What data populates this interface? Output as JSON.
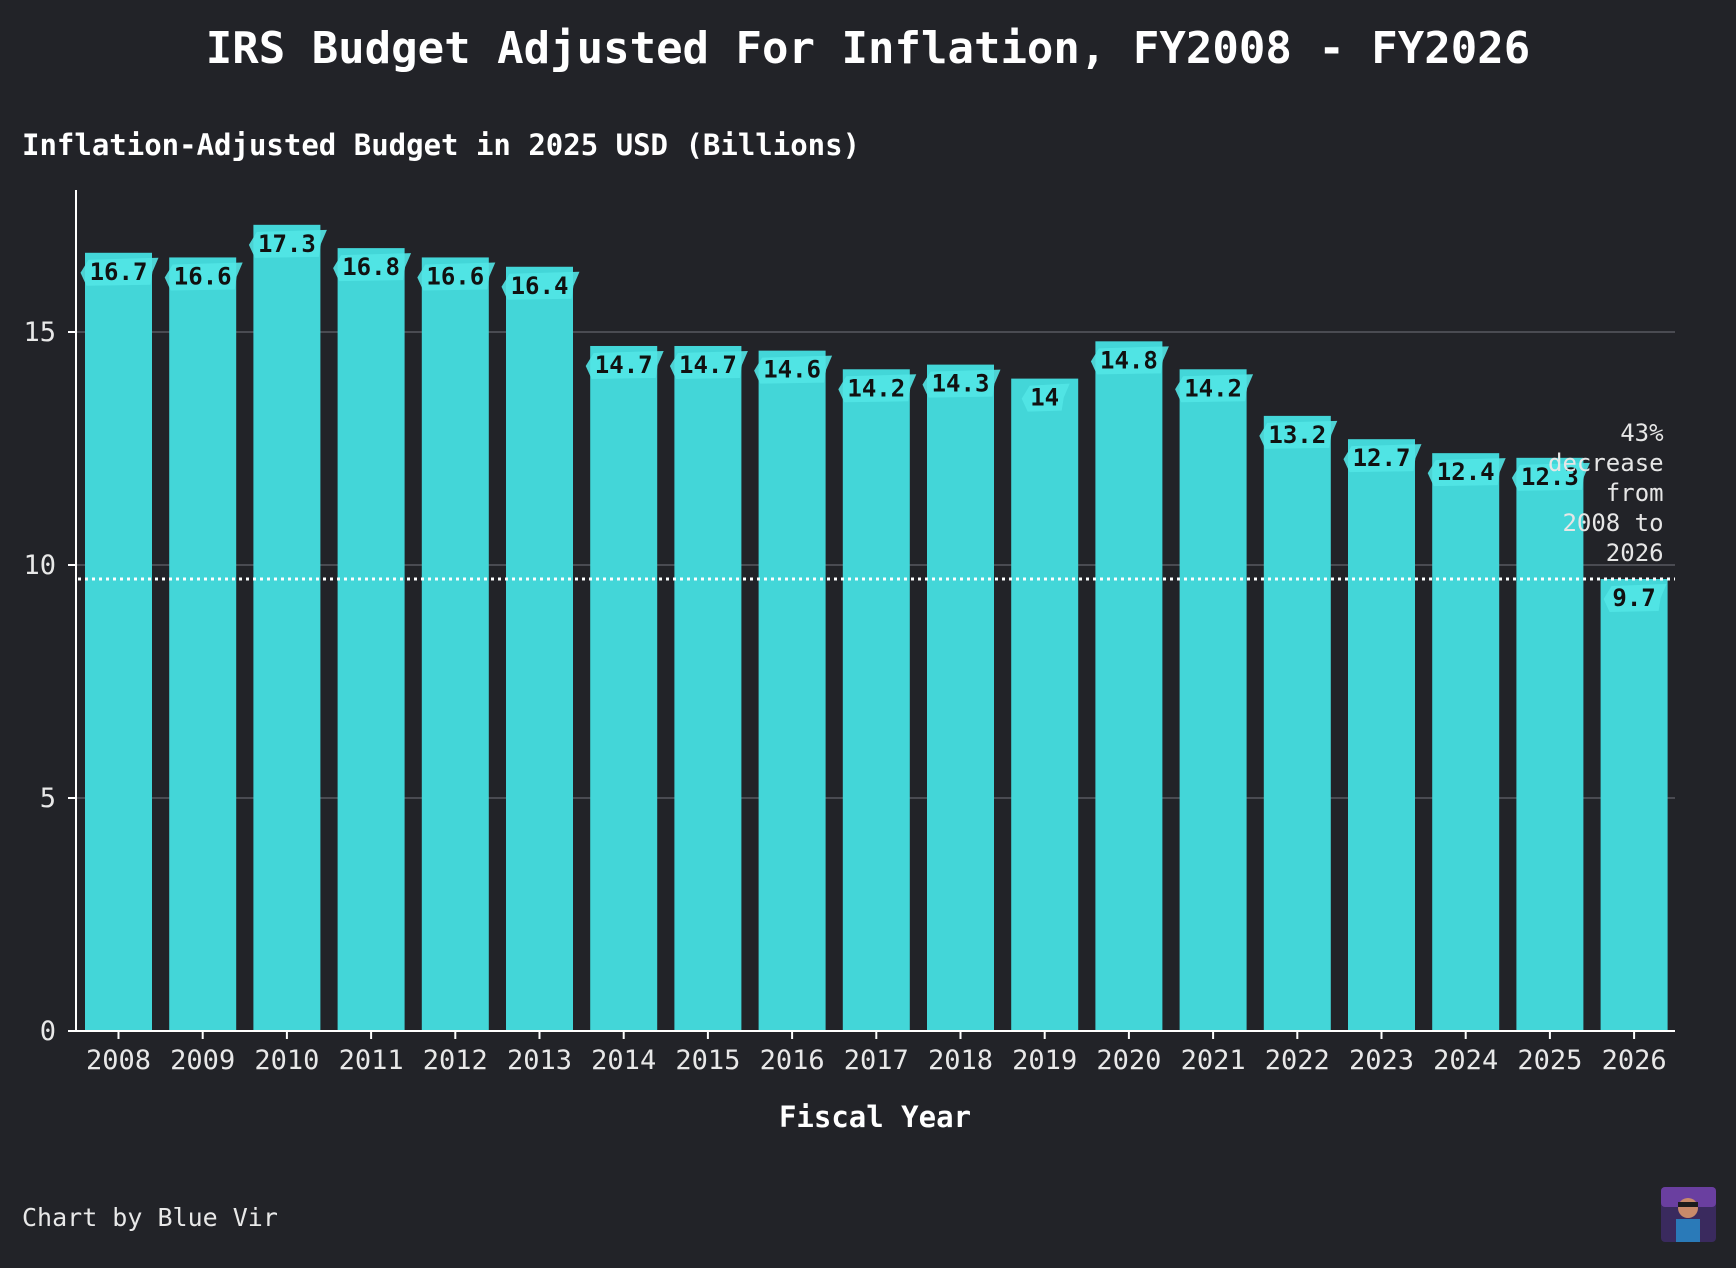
{
  "colors": {
    "background": "#222328",
    "bar": "#43d6d8",
    "label_bg": "#52e5e6",
    "grid": "#4a4b52",
    "axis": "#ffffff",
    "reference_line": "#ffffff"
  },
  "chart_data": {
    "type": "bar",
    "title": "IRS Budget Adjusted For Inflation, FY2008 - FY2026",
    "ylabel": "Inflation-Adjusted Budget in 2025 USD (Billions)",
    "xlabel": "Fiscal Year",
    "categories": [
      "2008",
      "2009",
      "2010",
      "2011",
      "2012",
      "2013",
      "2014",
      "2015",
      "2016",
      "2017",
      "2018",
      "2019",
      "2020",
      "2021",
      "2022",
      "2023",
      "2024",
      "2025",
      "2026"
    ],
    "values": [
      16.7,
      16.6,
      17.3,
      16.8,
      16.6,
      16.4,
      14.7,
      14.7,
      14.6,
      14.2,
      14.3,
      14,
      14.8,
      14.2,
      13.2,
      12.7,
      12.4,
      12.3,
      9.7
    ],
    "data_labels": [
      "16.7",
      "16.6",
      "17.3",
      "16.8",
      "16.6",
      "16.4",
      "14.7",
      "14.7",
      "14.6",
      "14.2",
      "14.3",
      "14",
      "14.8",
      "14.2",
      "13.2",
      "12.7",
      "12.4",
      "12.3",
      "9.7"
    ],
    "ylim": [
      0,
      18
    ],
    "yticks": [
      0,
      5,
      10,
      15
    ],
    "ytick_labels": [
      "0",
      "5",
      "10",
      "15"
    ],
    "grid": true,
    "reference_line": {
      "value": 9.7,
      "style": "dotted"
    },
    "annotation": {
      "lines": [
        "43%",
        "decrease",
        "from",
        "2008 to",
        "2026"
      ],
      "anchor_category": "2026",
      "anchor_value": 9.7
    },
    "legend": "none"
  },
  "credit": {
    "text": "Chart by Blue Vir",
    "avatar_icon": "avatar-icon"
  }
}
